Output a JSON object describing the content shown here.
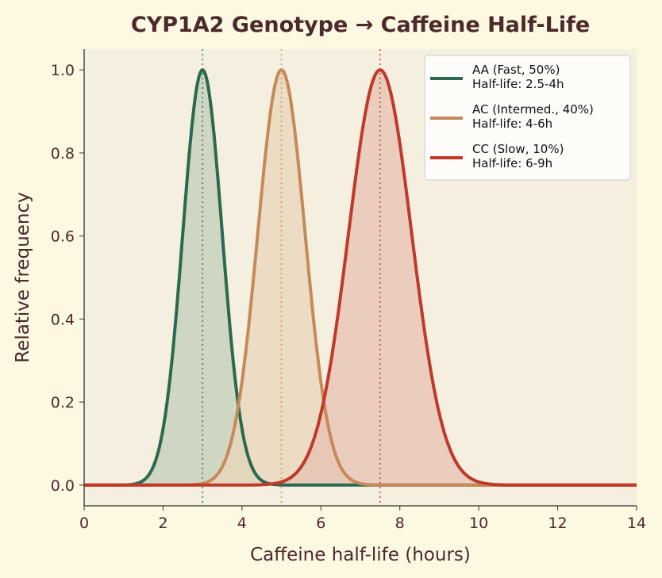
{
  "chart_data": {
    "type": "line",
    "title": "CYP1A2 Genotype → Caffeine Half-Life",
    "xlabel": "Caffeine half-life (hours)",
    "ylabel": "Relative frequency",
    "xlim": [
      0,
      14
    ],
    "ylim": [
      -0.05,
      1.05
    ],
    "xticks": [
      "0",
      "2",
      "4",
      "6",
      "8",
      "10",
      "12",
      "14"
    ],
    "yticks": [
      "0.0",
      "0.2",
      "0.4",
      "0.6",
      "0.8",
      "1.0"
    ],
    "grid": false,
    "legend_position": "top-right",
    "series": [
      {
        "name": "AA (Fast, 50%)",
        "note": "Half-life: 2.5-4h",
        "mean": 3,
        "sigma": 0.5,
        "peak": 1.0,
        "color": "#2b6a4e",
        "fill": "#c2cfba"
      },
      {
        "name": "AC (Intermed., 40%)",
        "note": "Half-life: 4-6h",
        "mean": 5,
        "sigma": 0.6,
        "peak": 1.0,
        "color": "#c68a5a",
        "fill": "#e8d5bb"
      },
      {
        "name": "CC (Slow, 10%)",
        "note": "Half-life: 6-9h",
        "mean": 7.5,
        "sigma": 0.8,
        "peak": 1.0,
        "color": "#c0392b",
        "fill": "#e6c2b2"
      }
    ]
  }
}
